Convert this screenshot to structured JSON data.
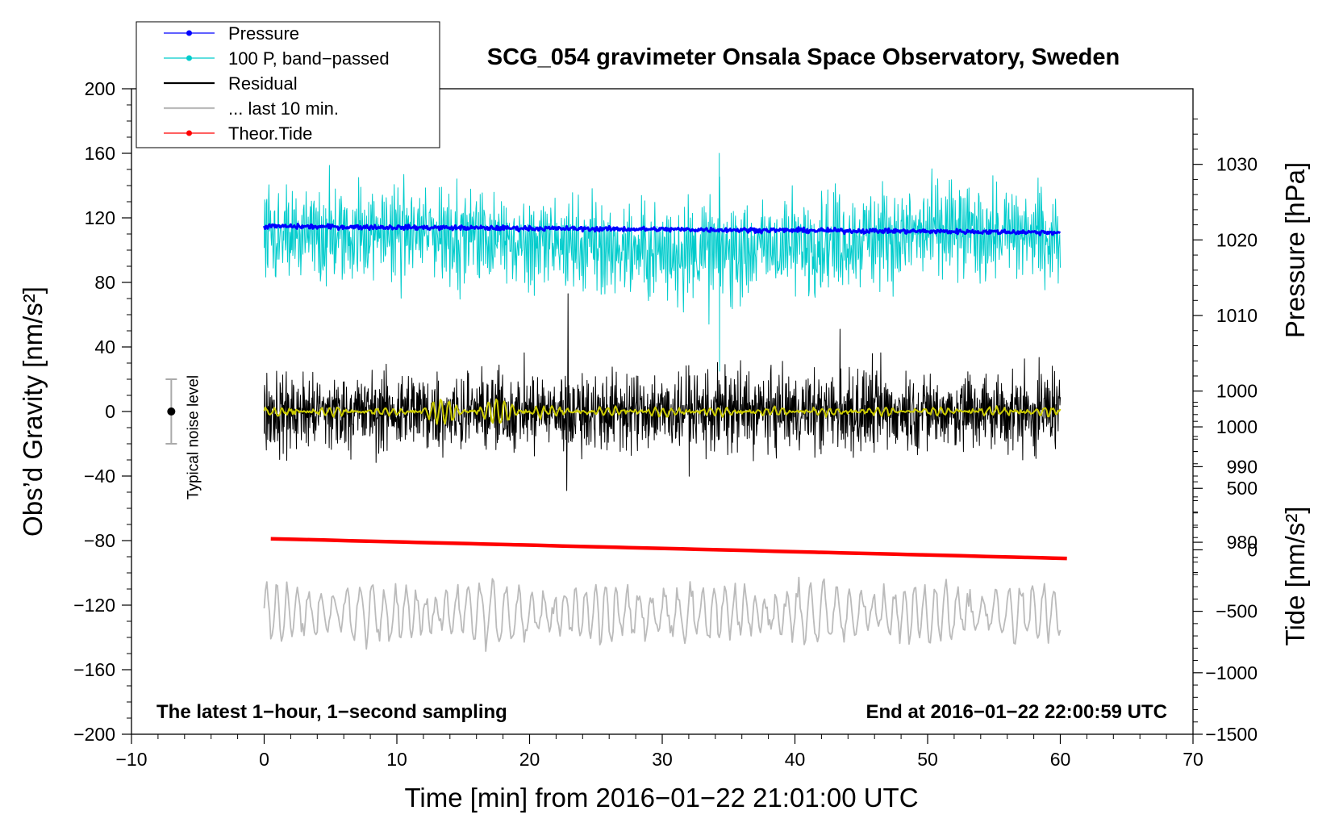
{
  "chart_data": {
    "type": "line",
    "title": "SCG_054 gravimeter Onsala Space Observatory, Sweden",
    "xlabel": "Time [min] from 2016−01−22 21:01:00 UTC",
    "ylabel_left": "Obs’d Gravity [nm/s²]",
    "ylabel_right_pressure": "Pressure [hPa]",
    "ylabel_right_tide": "Tide [nm/s²]",
    "xlim": [
      -10,
      70
    ],
    "ylim": [
      -200,
      200
    ],
    "pressure_axis_range": [
      954.6,
      1040
    ],
    "tide_axis_range": [
      -1500,
      3750
    ],
    "x_ticks": [
      -10,
      0,
      10,
      20,
      30,
      40,
      50,
      60,
      70
    ],
    "x_tick_labels": [
      "−10",
      "0",
      "10",
      "20",
      "30",
      "40",
      "50",
      "60",
      "70"
    ],
    "y_ticks": [
      200,
      160,
      120,
      80,
      40,
      0,
      -40,
      -80,
      -120,
      -160,
      -200
    ],
    "y_tick_labels": [
      "200",
      "160",
      "120",
      "80",
      "40",
      "0",
      "−40",
      "−80",
      "−120",
      "−160",
      "−200"
    ],
    "pressure_ticks": [
      1030,
      1020,
      1010,
      1000,
      990,
      980
    ],
    "pressure_tick_labels": [
      "1030",
      "1020",
      "1010",
      "1000",
      "990",
      "980"
    ],
    "tide_ticks": [
      1000,
      500,
      0,
      -500,
      -1000,
      -1500
    ],
    "tide_tick_labels": [
      "1000",
      "500",
      "0",
      "−500",
      "−1000",
      "−1500"
    ],
    "annotation_left": "The latest 1−hour, 1−second sampling",
    "annotation_right": "End at 2016−01−22 22:00:59 UTC",
    "noise_level_label": "Typical noise level",
    "noise_bar": {
      "x": -7,
      "center": 0,
      "halfwidth": 20
    },
    "legend": [
      {
        "label": "Pressure",
        "color": "#0000ff",
        "marker": true
      },
      {
        "label": "100 P, band−passed",
        "color": "#00cccc",
        "marker": true
      },
      {
        "label": "Residual",
        "color": "#000000",
        "marker": false
      },
      {
        "label": "... last 10 min.",
        "color": "#bbbbbb",
        "marker": false
      },
      {
        "label": "Theor.Tide",
        "color": "#ff0000",
        "marker": true
      }
    ],
    "series": [
      {
        "name": "Pressure",
        "axis": "pressure",
        "color": "#0000ff",
        "x_range": [
          0,
          60
        ],
        "approx_start": 1021.8,
        "approx_end": 1021.0,
        "noise": 0.15
      },
      {
        "name": "100 P, band−passed",
        "axis": "gravity",
        "color": "#00cccc",
        "x_range": [
          0,
          60
        ],
        "mean": 105,
        "amplitude": 22,
        "spike": {
          "x": 34.3,
          "values": [
            160,
            25
          ]
        }
      },
      {
        "name": "Residual",
        "axis": "gravity",
        "color": "#000000",
        "x_range": [
          0,
          60
        ],
        "mean": 0,
        "amplitude": 20,
        "spikes": [
          {
            "x": 22.9,
            "value": 73
          },
          {
            "x": 43.4,
            "value": 51
          },
          {
            "x": 22.8,
            "value": -49
          }
        ]
      },
      {
        "name": "Smoothed residual",
        "axis": "gravity",
        "color": "#cccc00",
        "x_range": [
          0,
          60
        ],
        "mean": 0,
        "amplitude": 2.5
      },
      {
        "name": "... last 10 min.",
        "axis": "gravity",
        "color": "#bbbbbb",
        "x_range": [
          0,
          60
        ],
        "mean": -125,
        "amplitude": 15
      },
      {
        "name": "Theor.Tide",
        "axis": "tide",
        "color": "#ff0000",
        "x_range": [
          0.5,
          60.5
        ],
        "start": 90,
        "end": -70
      }
    ]
  }
}
